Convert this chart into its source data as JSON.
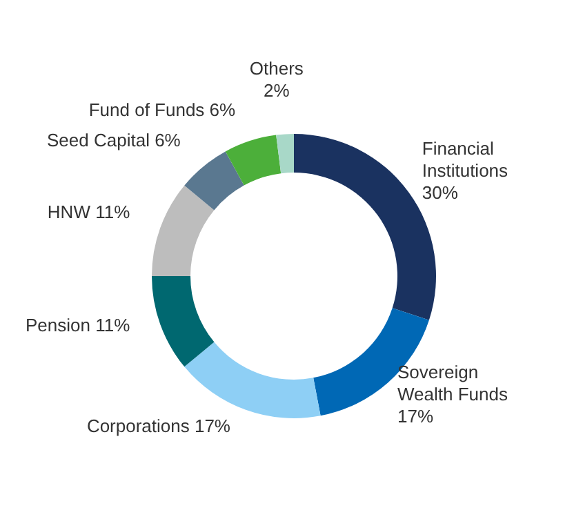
{
  "chart_data": {
    "type": "donut",
    "categories": [
      "Financial Institutions",
      "Sovereign Wealth Funds",
      "Corporations",
      "Pension",
      "HNW",
      "Seed Capital",
      "Fund of Funds",
      "Others"
    ],
    "values": [
      30,
      17,
      17,
      11,
      11,
      6,
      6,
      2
    ],
    "value_labels": [
      "30%",
      "17%",
      "17%",
      "11%",
      "11%",
      "6%",
      "6%",
      "2%"
    ],
    "colors": [
      "#1a3260",
      "#0068b5",
      "#8ecff5",
      "#006870",
      "#bdbdbd",
      "#5a7890",
      "#4caf3a",
      "#a8d8c8"
    ],
    "legend": false
  }
}
